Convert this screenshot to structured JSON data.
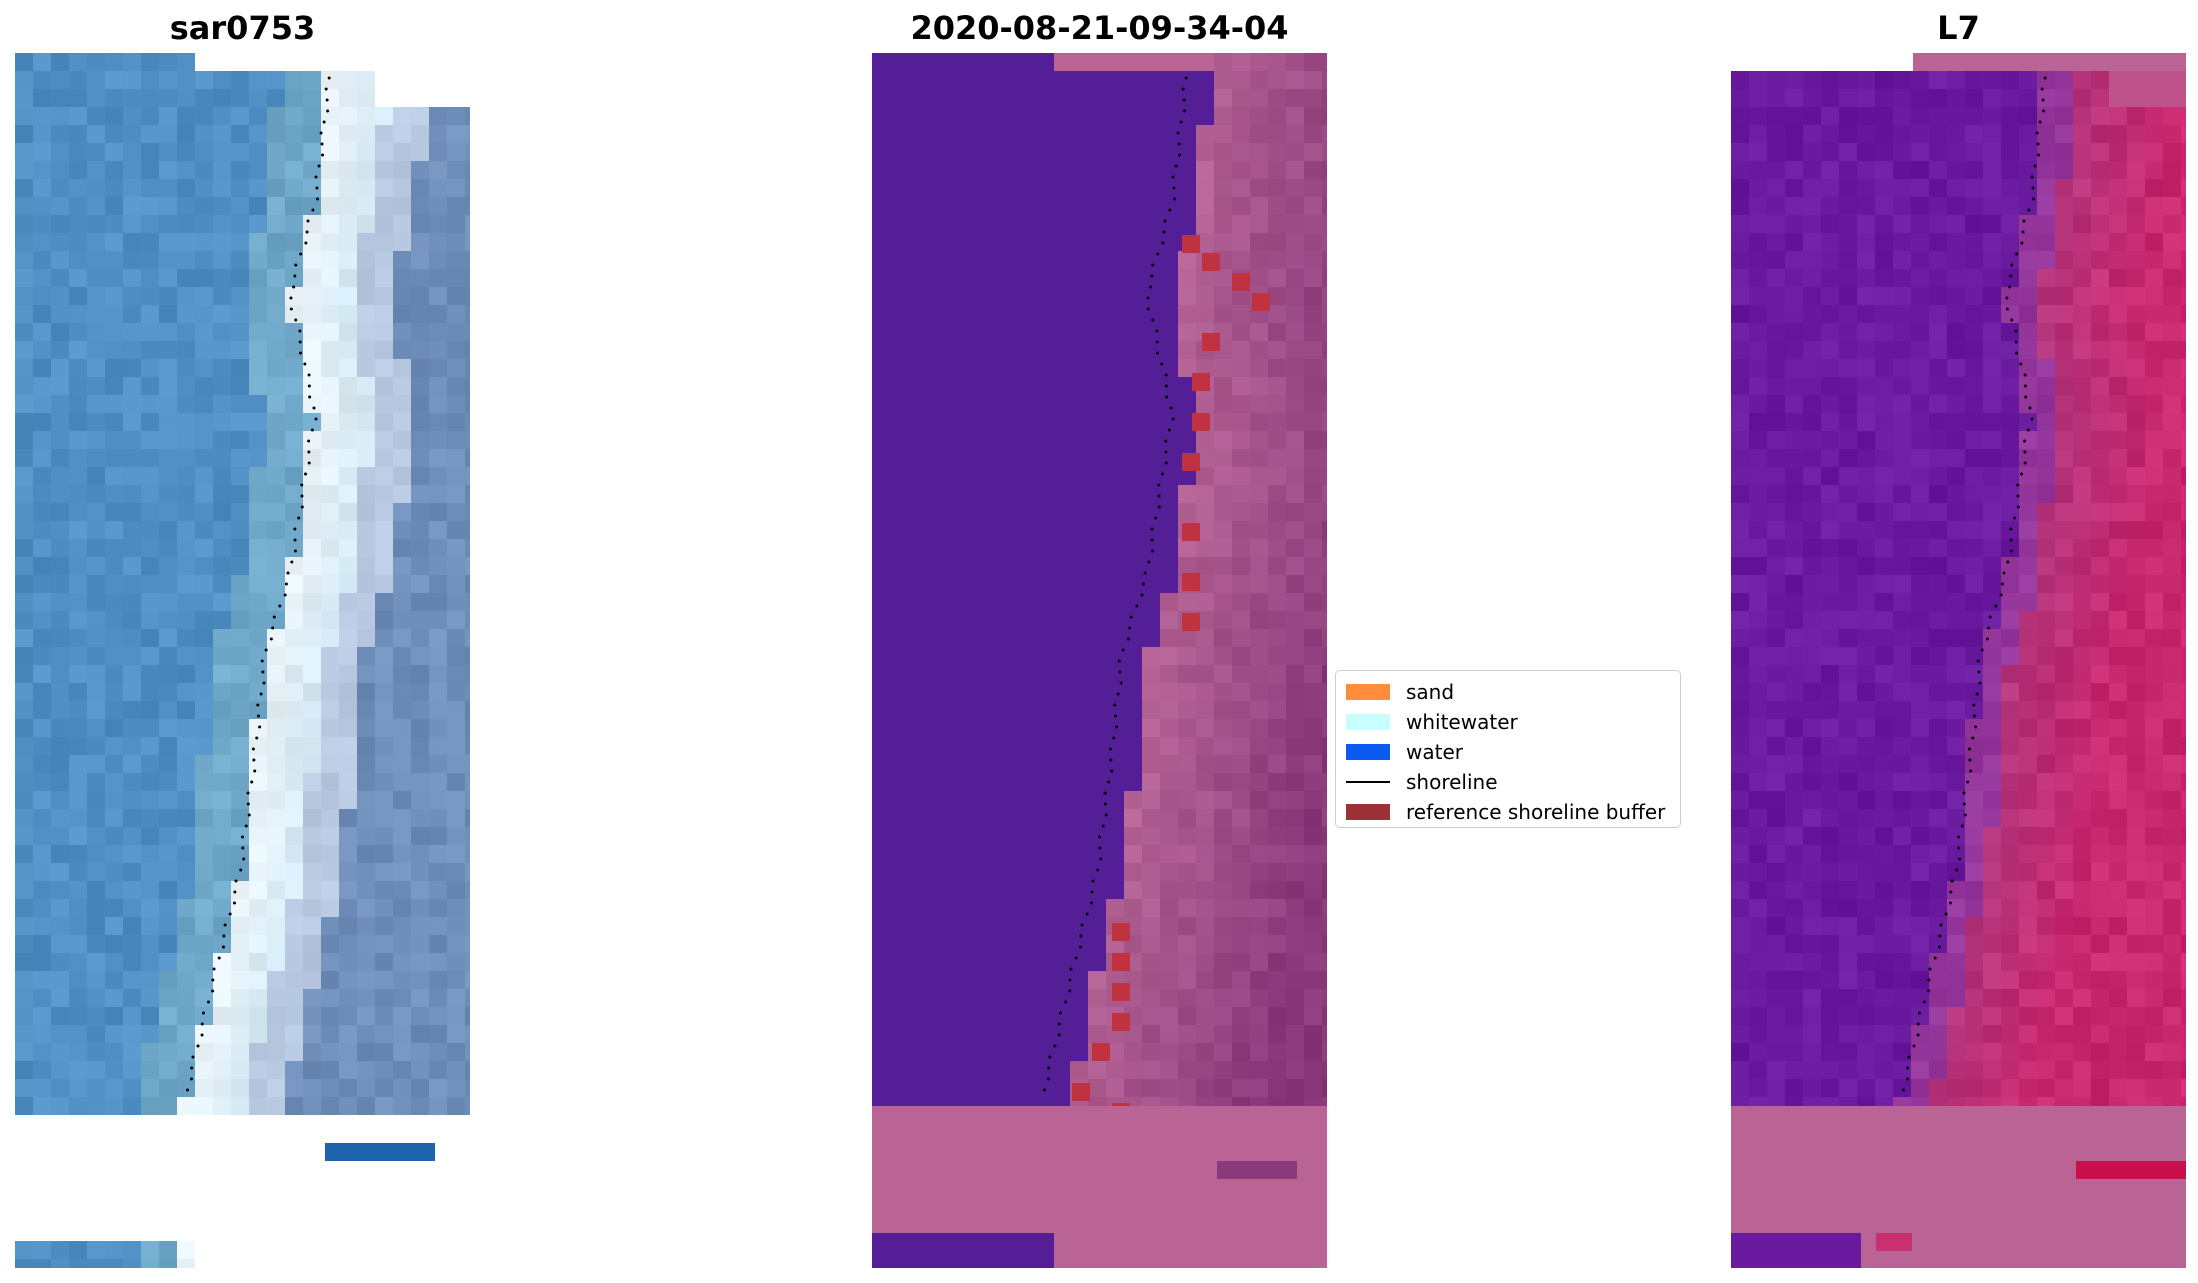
{
  "panels": [
    {
      "title": "sar0753"
    },
    {
      "title": "2020-08-21-09-34-04"
    },
    {
      "title": "L7"
    }
  ],
  "legend": {
    "items": [
      {
        "label": "sand",
        "color": "#ff8c3c",
        "kind": "patch"
      },
      {
        "label": "whitewater",
        "color": "#c8ffff",
        "kind": "patch"
      },
      {
        "label": "water",
        "color": "#0a5af0",
        "kind": "patch"
      },
      {
        "label": "shoreline",
        "color": "#000000",
        "kind": "line"
      },
      {
        "label": "reference shoreline buffer",
        "color": "#9b3238",
        "kind": "patch"
      }
    ]
  },
  "colors": {
    "rgb_ocean": "#4f8fc3",
    "rgb_surf": "#e8f2f8",
    "rgb_beach": "#6f8eba",
    "classified_water": "#541f96",
    "classified_land": "#b76596",
    "classified_dark_land": "#8a3a7a",
    "buffer": "#c0323f",
    "ndwi_water": "#6a1a9e",
    "ndwi_land": "#c8286e",
    "nodata_pink": "#b96494"
  }
}
